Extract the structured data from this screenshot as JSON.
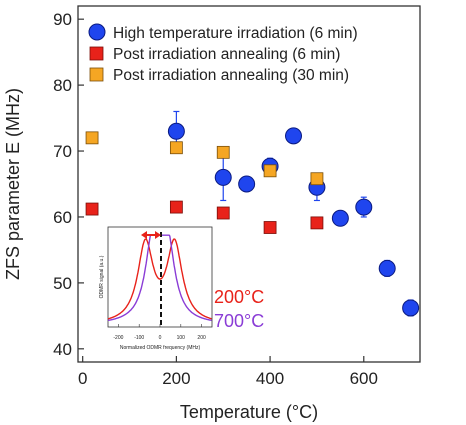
{
  "chart_data": {
    "type": "scatter",
    "xlabel": "Temperature (°C)",
    "ylabel": "ZFS parameter E (MHz)",
    "xlim": [
      -10,
      720
    ],
    "ylim": [
      38,
      92
    ],
    "xticks": [
      0,
      200,
      400,
      600
    ],
    "yticks": [
      40,
      50,
      60,
      70,
      80,
      90
    ],
    "grid": false,
    "legend": "top-left",
    "series": [
      {
        "name": "High temperature irradiation (6 min)",
        "marker": "circle",
        "color": "#1f45ee",
        "x": [
          200,
          300,
          350,
          400,
          450,
          500,
          550,
          600,
          650,
          700
        ],
        "y": [
          73,
          66,
          65,
          67.7,
          72.3,
          64.5,
          59.8,
          61.5,
          52.2,
          46.2
        ],
        "yerr": [
          3,
          3.5,
          0,
          1.2,
          0,
          2,
          0,
          1.5,
          1.2,
          1.2
        ]
      },
      {
        "name": "Post irradiation annealing (6 min)",
        "marker": "square",
        "color": "#e8221a",
        "x": [
          20,
          200,
          300,
          400,
          500
        ],
        "y": [
          61.2,
          61.5,
          60.6,
          58.4,
          59.1
        ]
      },
      {
        "name": "Post irradiation annealing (30 min)",
        "marker": "square",
        "color": "#f5a623",
        "x": [
          20,
          200,
          300,
          400,
          500
        ],
        "y": [
          72,
          70.5,
          69.8,
          67,
          65.8
        ]
      }
    ],
    "inset": {
      "xlabel": "Normalized ODMR frequency (MHz)",
      "ylabel": "ODMR signal (a.u.)",
      "xticks": [
        "-200",
        "-100",
        "0",
        "100",
        "200"
      ],
      "curves": [
        {
          "label": "200°C",
          "color": "#e8221a"
        },
        {
          "label": "700°C",
          "color": "#8a3cd6"
        }
      ]
    }
  }
}
